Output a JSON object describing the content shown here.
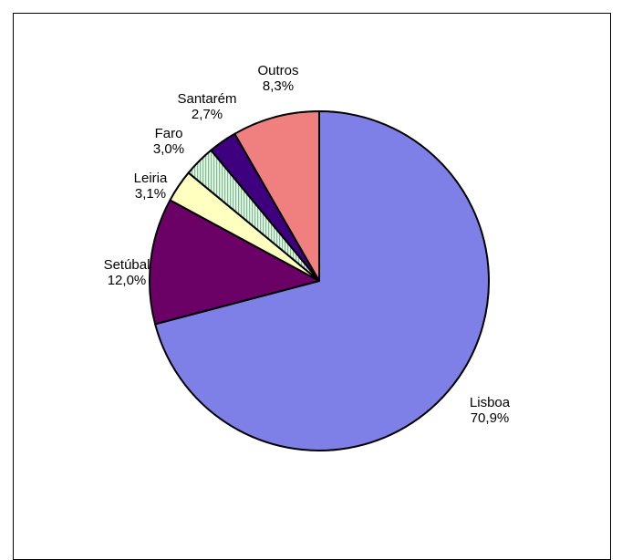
{
  "chart_data": {
    "type": "pie",
    "title": "",
    "start_angle_deg": 0,
    "direction": "clockwise",
    "slices": [
      {
        "label": "Lisboa",
        "value": 70.9,
        "value_label": "70,9%",
        "color": "#7F7FE8",
        "pattern": "solid"
      },
      {
        "label": "Setúbal",
        "value": 12.0,
        "value_label": "12,0%",
        "color": "#6B0066",
        "pattern": "solid"
      },
      {
        "label": "Leiria",
        "value": 3.1,
        "value_label": "3,1%",
        "color": "#FFFFC0",
        "pattern": "solid"
      },
      {
        "label": "Faro",
        "value": 3.0,
        "value_label": "3,0%",
        "color": "#CFEFD6",
        "pattern": "vertical-stripes"
      },
      {
        "label": "Santarém",
        "value": 2.7,
        "value_label": "2,7%",
        "color": "#3F0080",
        "pattern": "solid"
      },
      {
        "label": "Outros",
        "value": 8.3,
        "value_label": "8,3%",
        "color": "#F08080",
        "pattern": "solid"
      }
    ]
  }
}
